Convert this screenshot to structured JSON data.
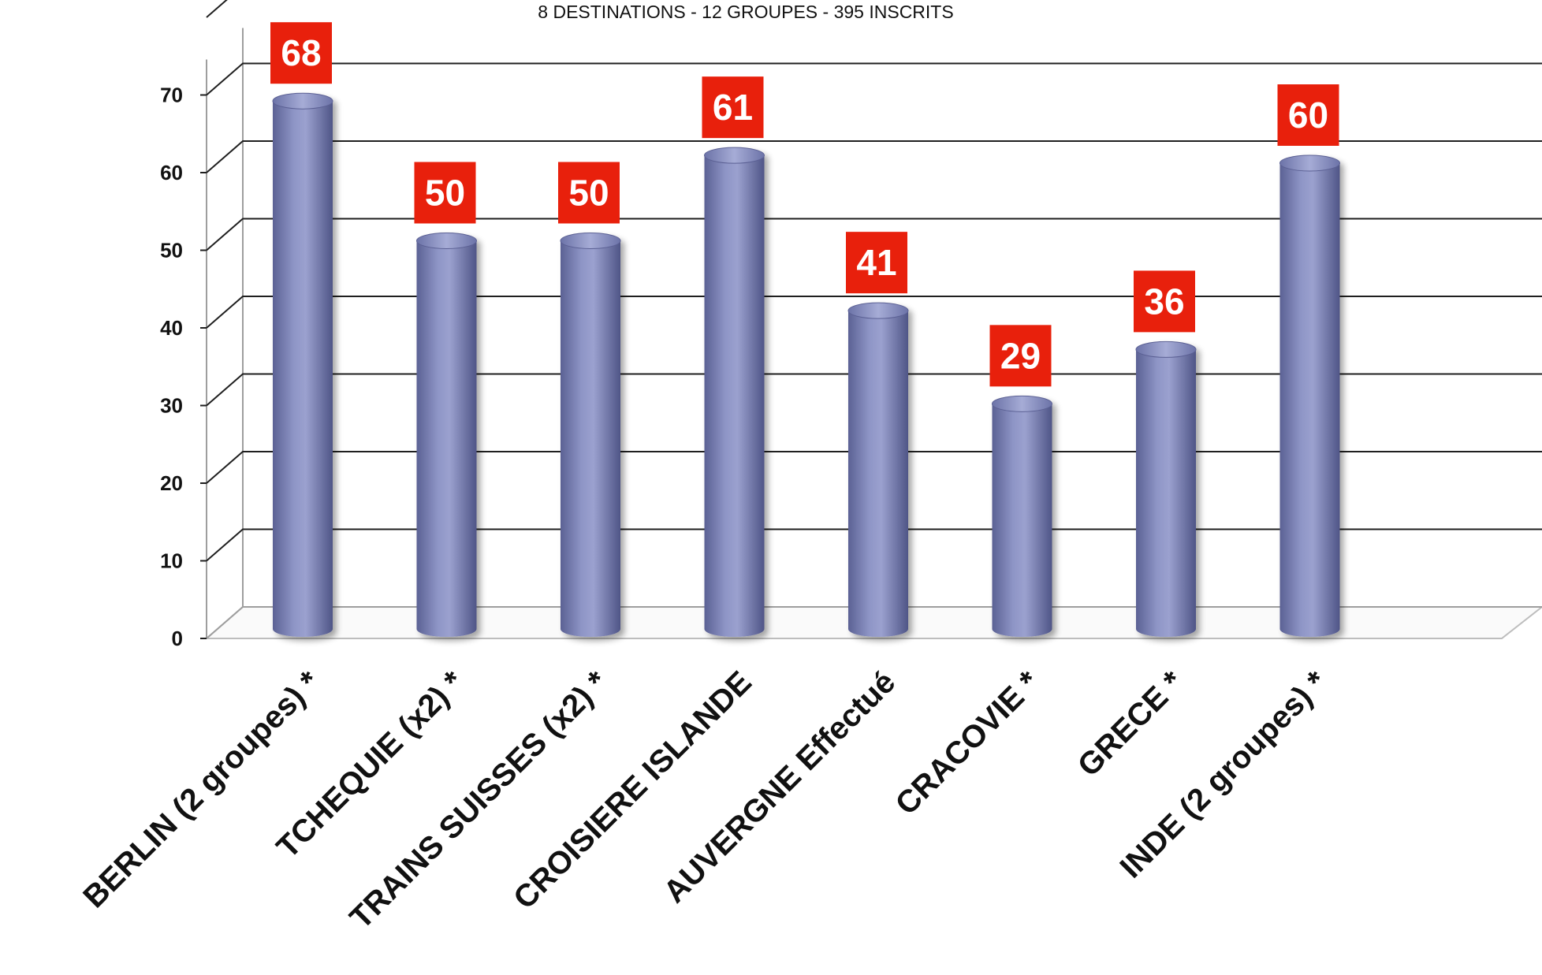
{
  "chart_data": {
    "type": "bar",
    "title": "8 DESTINATIONS - 12 GROUPES - 395 INSCRITS",
    "categories": [
      "BERLIN  (2 groupes) *",
      "TCHEQUIE (x2)  *",
      "TRAINS SUISSES (x2)  *",
      "CROISIERE ISLANDE",
      "AUVERGNE Effectué",
      "CRACOVIE *",
      "GRECE *",
      "INDE  (2 groupes)  *"
    ],
    "values": [
      68,
      50,
      50,
      61,
      41,
      29,
      36,
      60
    ],
    "y_ticks": [
      0,
      10,
      20,
      30,
      40,
      50,
      60,
      70
    ],
    "ylim": [
      0,
      70
    ],
    "xlabel": "",
    "ylabel": "",
    "grid": true,
    "legend": false,
    "bar_style": "3d-cylinder",
    "colors": {
      "bar": "#7f86b8",
      "bar_dark": "#5b6194",
      "bar_light": "#a6acd6",
      "label_box": "#e8200c",
      "label_text": "#ffffff",
      "grid": "#1a1a1a",
      "axis_text": "#111111"
    }
  }
}
